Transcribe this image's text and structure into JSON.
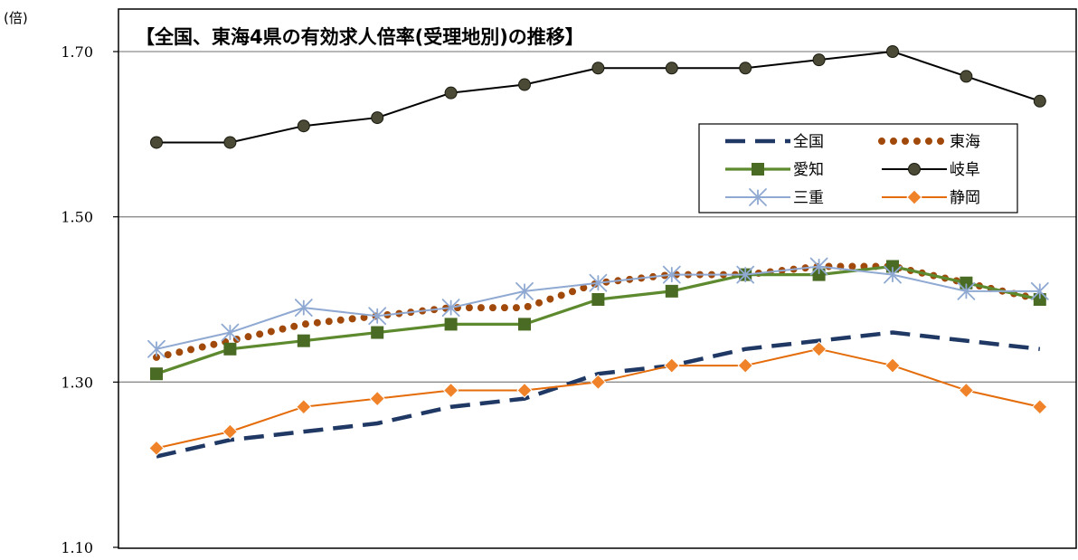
{
  "chart_data": {
    "type": "line",
    "title": "【全国、東海4県の有効求人倍率(受理地別)の推移】",
    "unit_label": "(倍)",
    "ylim": [
      1.1,
      1.7
    ],
    "yticks": [
      "1.70",
      "1.50",
      "1.30",
      "1.10"
    ],
    "ytick_values": [
      1.7,
      1.5,
      1.3,
      1.1
    ],
    "grid": true,
    "legend_position": "upper-right",
    "n_points": 13,
    "series": [
      {
        "name": "全国",
        "color": "#1f3864",
        "style": "dashed",
        "marker": "none",
        "values": [
          1.21,
          1.23,
          1.24,
          1.25,
          1.27,
          1.28,
          1.31,
          1.32,
          1.34,
          1.35,
          1.36,
          1.35,
          1.34
        ]
      },
      {
        "name": "東海",
        "color": "#a0490a",
        "style": "dotted",
        "marker": "none",
        "values": [
          1.33,
          1.35,
          1.37,
          1.38,
          1.39,
          1.39,
          1.42,
          1.43,
          1.43,
          1.44,
          1.44,
          1.42,
          1.4
        ]
      },
      {
        "name": "愛知",
        "color": "#5d8a2e",
        "marker_color": "#4a6b24",
        "style": "solid",
        "marker": "square",
        "values": [
          1.31,
          1.34,
          1.35,
          1.36,
          1.37,
          1.37,
          1.4,
          1.41,
          1.43,
          1.43,
          1.44,
          1.42,
          1.4
        ]
      },
      {
        "name": "岐阜",
        "color": "#000000",
        "marker_color": "#4a4a36",
        "style": "solid",
        "marker": "circle",
        "values": [
          1.59,
          1.59,
          1.61,
          1.62,
          1.65,
          1.66,
          1.68,
          1.68,
          1.68,
          1.69,
          1.7,
          1.67,
          1.64
        ]
      },
      {
        "name": "三重",
        "color": "#8fa9d2",
        "style": "solid",
        "marker": "asterisk",
        "values": [
          1.34,
          1.36,
          1.39,
          1.38,
          1.39,
          1.41,
          1.42,
          1.43,
          1.43,
          1.44,
          1.43,
          1.41,
          1.41
        ]
      },
      {
        "name": "静岡",
        "color": "#e46c0a",
        "marker_color": "#f0832a",
        "style": "solid",
        "marker": "diamond",
        "values": [
          1.22,
          1.24,
          1.27,
          1.28,
          1.29,
          1.29,
          1.3,
          1.32,
          1.32,
          1.34,
          1.32,
          1.29,
          1.27
        ]
      }
    ]
  }
}
